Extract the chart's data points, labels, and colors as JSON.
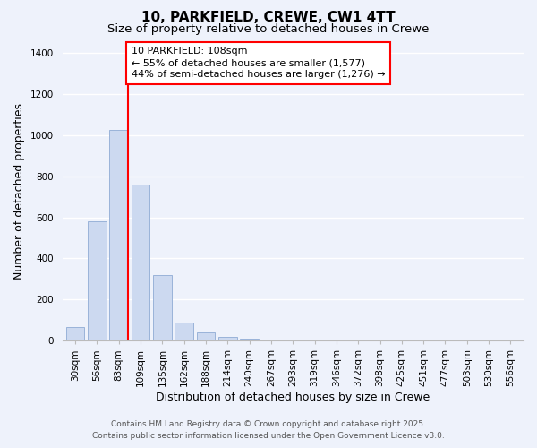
{
  "title": "10, PARKFIELD, CREWE, CW1 4TT",
  "subtitle": "Size of property relative to detached houses in Crewe",
  "xlabel": "Distribution of detached houses by size in Crewe",
  "ylabel": "Number of detached properties",
  "bar_color": "#ccd9f0",
  "bar_edge_color": "#99b3d9",
  "background_color": "#eef2fb",
  "grid_color": "#ffffff",
  "categories": [
    "30sqm",
    "56sqm",
    "83sqm",
    "109sqm",
    "135sqm",
    "162sqm",
    "188sqm",
    "214sqm",
    "240sqm",
    "267sqm",
    "293sqm",
    "319sqm",
    "346sqm",
    "372sqm",
    "398sqm",
    "425sqm",
    "451sqm",
    "477sqm",
    "503sqm",
    "530sqm",
    "556sqm"
  ],
  "values": [
    65,
    580,
    1025,
    760,
    320,
    88,
    40,
    18,
    8,
    2,
    0,
    0,
    0,
    0,
    0,
    0,
    0,
    0,
    0,
    0,
    0
  ],
  "marker_bar_index": 2,
  "marker_label": "10 PARKFIELD: 108sqm",
  "annotation_line1": "← 55% of detached houses are smaller (1,577)",
  "annotation_line2": "44% of semi-detached houses are larger (1,276) →",
  "ylim": [
    0,
    1450
  ],
  "yticks": [
    0,
    200,
    400,
    600,
    800,
    1000,
    1200,
    1400
  ],
  "footer_line1": "Contains HM Land Registry data © Crown copyright and database right 2025.",
  "footer_line2": "Contains public sector information licensed under the Open Government Licence v3.0.",
  "title_fontsize": 11,
  "subtitle_fontsize": 9.5,
  "axis_label_fontsize": 9,
  "tick_fontsize": 7.5,
  "annotation_fontsize": 8,
  "footer_fontsize": 6.5
}
